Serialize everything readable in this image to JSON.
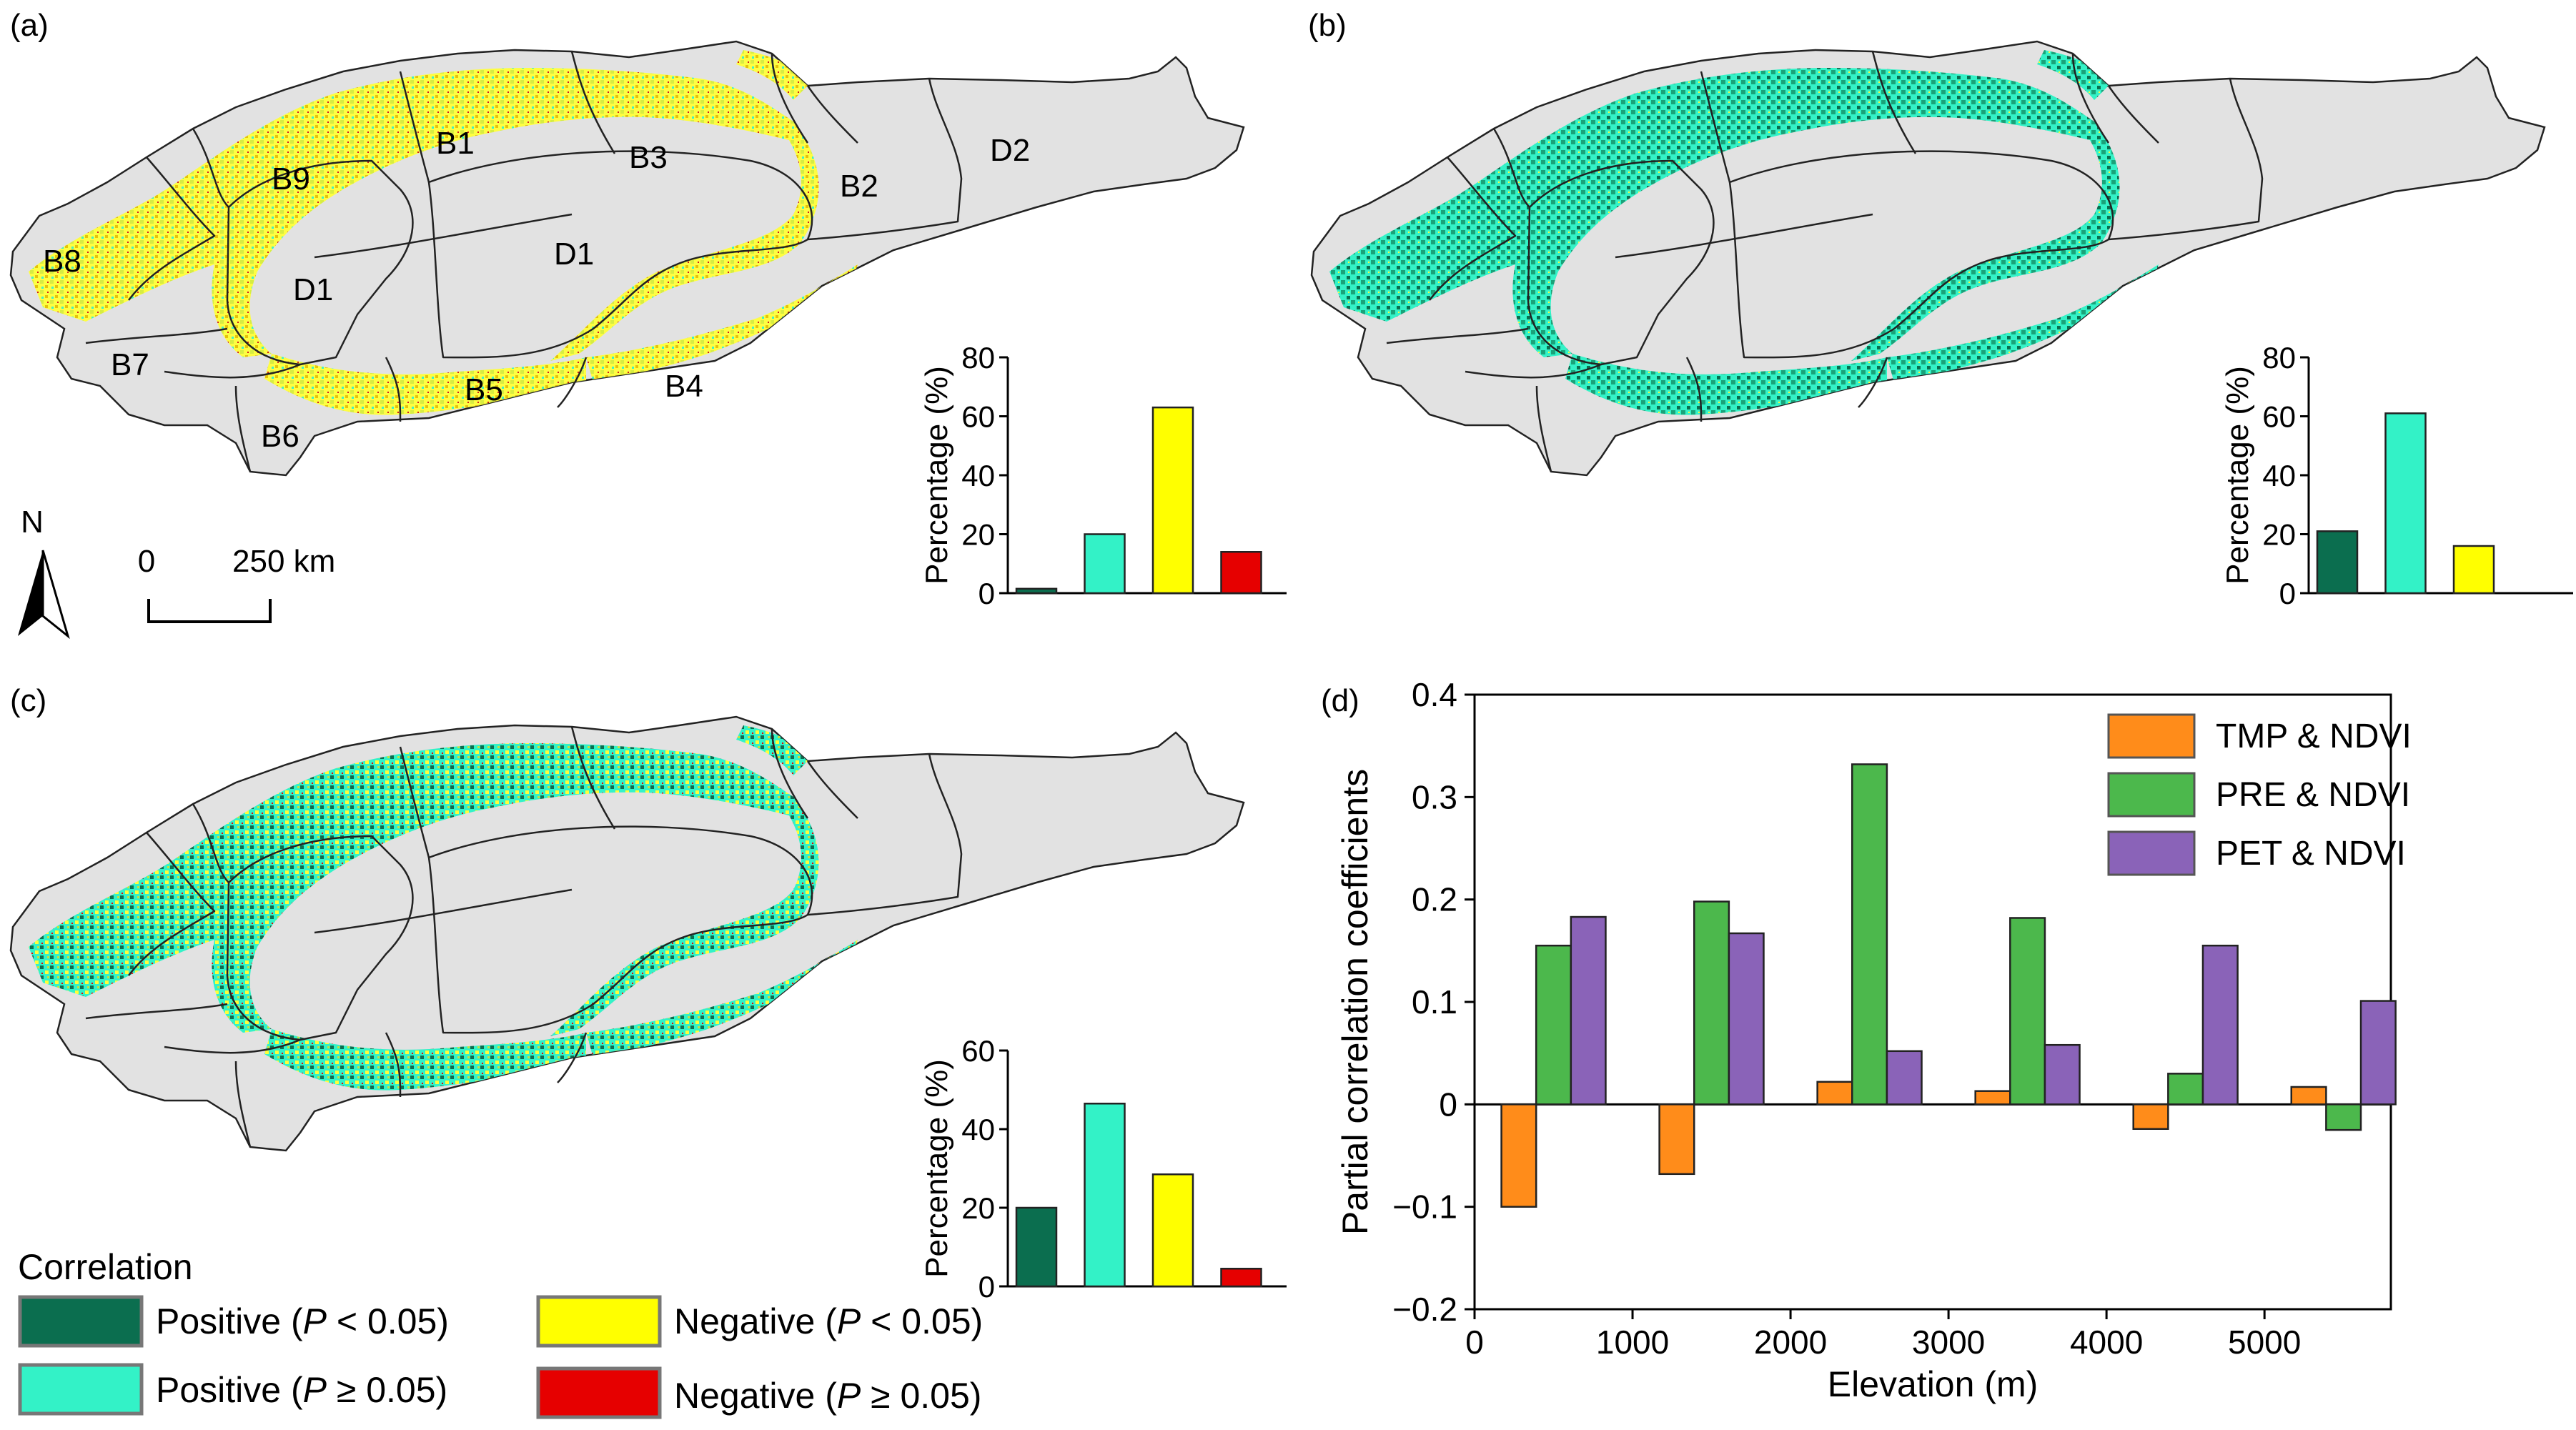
{
  "panels": {
    "a": {
      "label": "(a)",
      "regions": [
        "B1",
        "B2",
        "B3",
        "B4",
        "B5",
        "B6",
        "B7",
        "B8",
        "B9",
        "D1",
        "D1",
        "D2"
      ]
    },
    "b": {
      "label": "(b)"
    },
    "c": {
      "label": "(c)"
    },
    "d": {
      "label": "(d)"
    }
  },
  "north_arrow": {
    "label": "N"
  },
  "scale_bar": {
    "start": "0",
    "end": "250 km"
  },
  "legend": {
    "title": "Correlation",
    "items": [
      {
        "key": "pos_sig",
        "prefix": "Positive (",
        "p": "P",
        "suffix": " < 0.05)",
        "color": "#0b6e4f"
      },
      {
        "key": "pos_nonsig",
        "prefix": "Positive (",
        "p": "P",
        "suffix": " ≥ 0.05)",
        "color": "#33f2c7"
      },
      {
        "key": "neg_sig",
        "prefix": "Negative (",
        "p": "P",
        "suffix": " < 0.05)",
        "color": "#ffff00"
      },
      {
        "key": "neg_nonsig",
        "prefix": "Negative (",
        "p": "P",
        "suffix": " ≥ 0.05)",
        "color": "#e60000"
      }
    ]
  },
  "colors": {
    "map_fill": "#e2e2e2",
    "pos_sig": "#0b6e4f",
    "pos_nonsig": "#33f2c7",
    "neg_sig": "#ffff00",
    "neg_nonsig": "#e60000",
    "tmp": "#ff8c1a",
    "pre": "#4cb84c",
    "pet": "#8a63b8"
  },
  "chart_data": [
    {
      "id": "inset-a",
      "type": "bar",
      "categories": [
        "Positive (P < 0.05)",
        "Positive (P ≥ 0.05)",
        "Negative (P < 0.05)",
        "Negative (P ≥ 0.05)"
      ],
      "values": [
        1.5,
        20,
        63,
        14
      ],
      "ylabel": "Percentage (%)",
      "ylim": [
        0,
        80
      ],
      "yticks": [
        0,
        20,
        40,
        60,
        80
      ]
    },
    {
      "id": "inset-b",
      "type": "bar",
      "categories": [
        "Positive (P < 0.05)",
        "Positive (P ≥ 0.05)",
        "Negative (P < 0.05)"
      ],
      "values": [
        21,
        61,
        16
      ],
      "ylabel": "Percentage (%)",
      "ylim": [
        0,
        80
      ],
      "yticks": [
        0,
        20,
        40,
        60,
        80
      ]
    },
    {
      "id": "inset-c",
      "type": "bar",
      "categories": [
        "Positive (P < 0.05)",
        "Positive (P ≥ 0.05)",
        "Negative (P < 0.05)",
        "Negative (P ≥ 0.05)"
      ],
      "values": [
        20,
        46.5,
        28.5,
        4.5
      ],
      "ylabel": "Percentage (%)",
      "ylim": [
        0,
        60
      ],
      "yticks": [
        0,
        20,
        40,
        60
      ]
    },
    {
      "id": "panel-d",
      "type": "bar",
      "xlabel": "Elevation (m)",
      "ylabel": "Partial correlation coefficients",
      "xlim": [
        0,
        5800
      ],
      "ylim": [
        -0.2,
        0.4
      ],
      "xticks": [
        0,
        1000,
        2000,
        3000,
        4000,
        5000
      ],
      "yticks": [
        "−0.2",
        "−0.1",
        "0",
        "0.1",
        "0.2",
        "0.3",
        "0.4"
      ],
      "ytick_values": [
        -0.2,
        -0.1,
        0,
        0.1,
        0.2,
        0.3,
        0.4
      ],
      "categories": [
        500,
        1500,
        2500,
        3500,
        4500,
        5500
      ],
      "legend_position": "top-right",
      "series": [
        {
          "name": "TMP & NDVI",
          "values": [
            -0.1,
            -0.068,
            0.022,
            0.013,
            -0.024,
            0.017
          ]
        },
        {
          "name": "PRE & NDVI",
          "values": [
            0.155,
            0.198,
            0.332,
            0.182,
            0.03,
            -0.025
          ]
        },
        {
          "name": "PET & NDVI",
          "values": [
            0.183,
            0.167,
            0.052,
            0.058,
            0.155,
            0.101
          ]
        }
      ]
    }
  ]
}
